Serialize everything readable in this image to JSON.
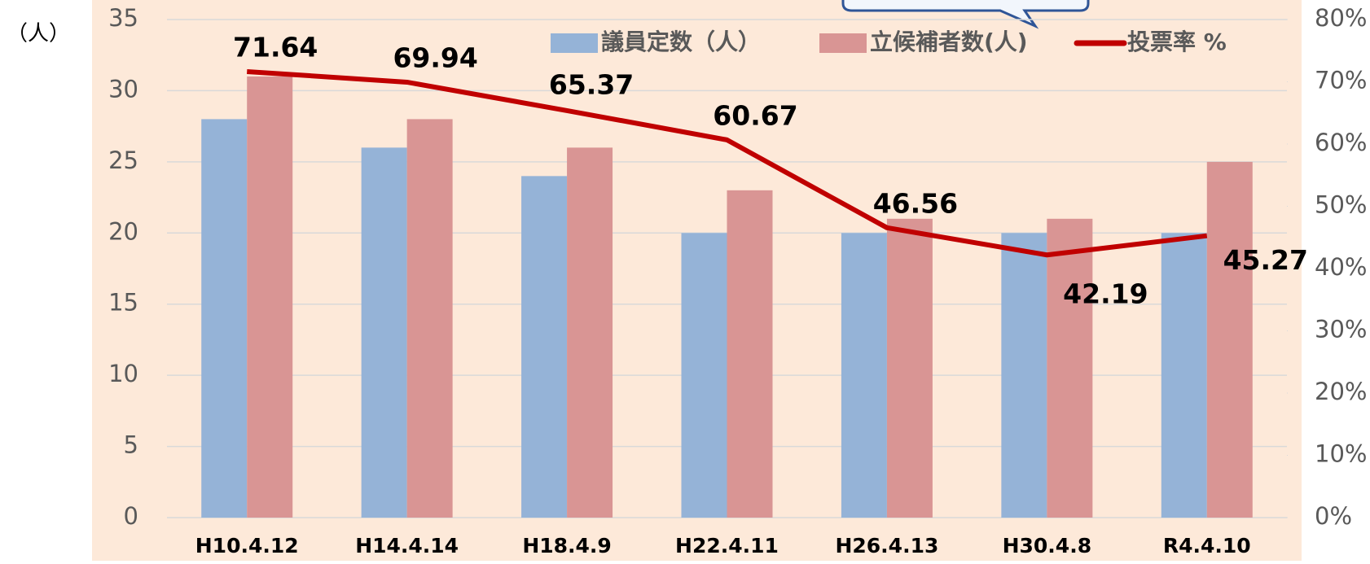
{
  "chart_data": {
    "type": "bar",
    "y_axis_label": "（人）",
    "categories": [
      "H10.4.12",
      "H14.4.14",
      "H18.4.9",
      "H22.4.11",
      "H26.4.13",
      "H30.4.8",
      "R4.4.10"
    ],
    "series": [
      {
        "name": "議員定数（人）",
        "color": "#95b3d7",
        "values": [
          28,
          26,
          24,
          20,
          20,
          20,
          20
        ]
      },
      {
        "name": "立候補者数(人)",
        "color": "#d99594",
        "values": [
          31,
          28,
          26,
          23,
          21,
          21,
          25
        ]
      },
      {
        "name": "投票率 %",
        "color": "#c00000",
        "type": "line",
        "axis": "y2",
        "values": [
          71.64,
          69.94,
          65.37,
          60.67,
          46.56,
          42.19,
          45.27
        ]
      }
    ],
    "ylim": [
      0,
      35
    ],
    "yticks": [
      0,
      5,
      10,
      15,
      20,
      25,
      30,
      35
    ],
    "y2lim": [
      0,
      80
    ],
    "y2ticks": [
      {
        "value": 0,
        "label": "0%"
      },
      {
        "value": 10,
        "label": "10%"
      },
      {
        "value": 20,
        "label": "20%"
      },
      {
        "value": 30,
        "label": "30%"
      },
      {
        "value": 40,
        "label": "40%"
      },
      {
        "value": 50,
        "label": "50%"
      },
      {
        "value": 60,
        "label": "60%"
      },
      {
        "value": 70,
        "label": "70%"
      },
      {
        "value": 80,
        "label": "80%"
      }
    ],
    "grid": true,
    "legend": "top"
  }
}
